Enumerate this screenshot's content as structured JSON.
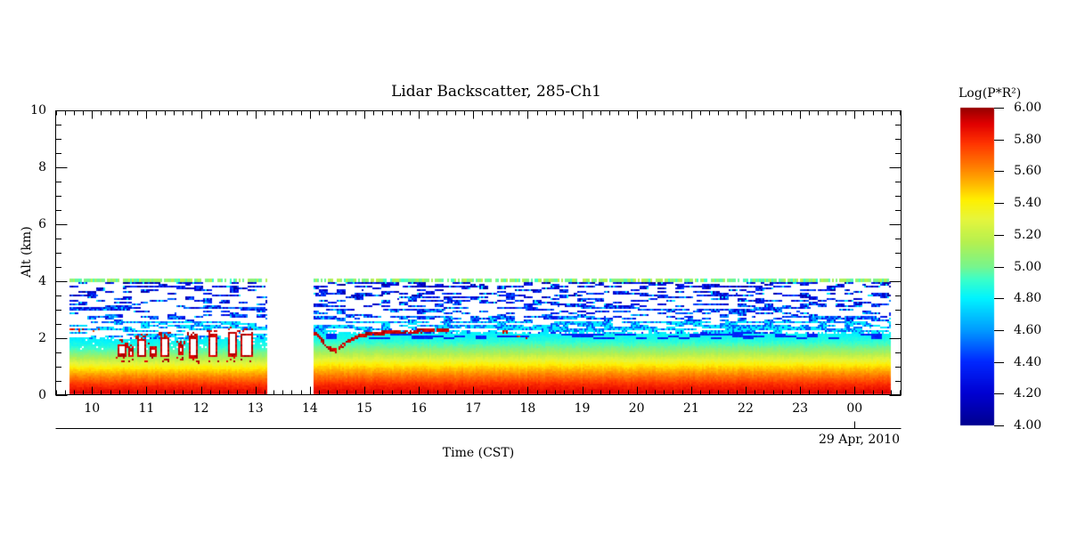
{
  "labels": {
    "title": "Lidar Backscatter, 285-Ch1",
    "xlabel": "Time (CST)",
    "ylabel": "Alt (km)",
    "date": "29 Apr, 2010",
    "colorbar_title": "Log(P*R²)"
  },
  "chart_data": {
    "type": "heatmap",
    "title": "Lidar Backscatter, 285-Ch1",
    "xlabel": "Time (CST)",
    "ylabel": "Alt (km)",
    "date": "29 Apr, 2010",
    "colorbar_title": "Log(P*R²)",
    "xlim_hours": [
      9.33,
      24.87
    ],
    "ylim_km": [
      0,
      10
    ],
    "x_tick_hours": [
      10,
      11,
      12,
      13,
      14,
      15,
      16,
      17,
      18,
      19,
      20,
      21,
      22,
      23,
      24
    ],
    "x_tick_labels": [
      "10",
      "11",
      "12",
      "13",
      "14",
      "15",
      "16",
      "17",
      "18",
      "19",
      "20",
      "21",
      "22",
      "23",
      "00"
    ],
    "x_minor_per_hour": 6,
    "y_tick_km": [
      0,
      2,
      4,
      6,
      8,
      10
    ],
    "y_tick_labels": [
      "0",
      "2",
      "4",
      "6",
      "8",
      "10"
    ],
    "y_minor_step_km": 0.5,
    "colorbar": {
      "min": 4.0,
      "max": 6.0,
      "tick_values": [
        6.0,
        5.8,
        5.6,
        5.4,
        5.2,
        5.0,
        4.8,
        4.6,
        4.4,
        4.2,
        4.0
      ],
      "tick_labels": [
        "6.00",
        "5.80",
        "5.60",
        "5.40",
        "5.20",
        "5.00",
        "4.80",
        "4.60",
        "4.40",
        "4.20",
        "4.00"
      ]
    },
    "colormap_stops": [
      [
        4.0,
        "#000090"
      ],
      [
        4.2,
        "#0000D2"
      ],
      [
        4.4,
        "#0028FF"
      ],
      [
        4.6,
        "#009CFF"
      ],
      [
        4.8,
        "#00F4FF"
      ],
      [
        4.92,
        "#3CFFC8"
      ],
      [
        5.0,
        "#78F58C"
      ],
      [
        5.15,
        "#B4F050"
      ],
      [
        5.3,
        "#E6F53C"
      ],
      [
        5.42,
        "#FFF000"
      ],
      [
        5.6,
        "#FF8C00"
      ],
      [
        5.78,
        "#FF3200"
      ],
      [
        5.9,
        "#E10000"
      ],
      [
        6.0,
        "#960000"
      ]
    ],
    "coverage": {
      "start_hour": 9.58,
      "end_hour": 24.67,
      "gap_hours": [
        13.22,
        14.08
      ],
      "top_km": 4.07
    },
    "boundary_layer_top_km": {
      "morning": 1.98,
      "afternoon": 2.18
    },
    "surface_profile_km_logpr2": [
      [
        0.0,
        5.92
      ],
      [
        0.35,
        5.8
      ],
      [
        0.7,
        5.62
      ],
      [
        1.0,
        5.45
      ],
      [
        1.25,
        5.28
      ],
      [
        1.45,
        5.13
      ],
      [
        1.65,
        5.0
      ],
      [
        1.9,
        4.87
      ],
      [
        2.2,
        4.79
      ],
      [
        2.5,
        4.74
      ]
    ],
    "morning_alt_scale": 1.12,
    "clouds": [
      [
        10.47,
        10.62,
        1.35,
        1.78
      ],
      [
        10.67,
        10.78,
        1.3,
        1.62
      ],
      [
        10.84,
        11.0,
        1.3,
        1.96
      ],
      [
        11.07,
        11.18,
        1.35,
        1.7
      ],
      [
        11.26,
        11.42,
        1.3,
        2.02
      ],
      [
        11.58,
        11.68,
        1.4,
        1.76
      ],
      [
        11.79,
        11.94,
        1.28,
        2.06
      ],
      [
        12.14,
        12.3,
        1.3,
        2.12
      ],
      [
        12.5,
        12.66,
        1.35,
        2.22
      ],
      [
        12.74,
        12.96,
        1.3,
        2.16
      ]
    ],
    "aerosol_layer_track": [
      [
        14.1,
        2.18
      ],
      [
        14.22,
        1.92
      ],
      [
        14.35,
        1.62
      ],
      [
        14.48,
        1.55
      ],
      [
        14.6,
        1.72
      ],
      [
        14.75,
        1.92
      ],
      [
        14.92,
        2.08
      ],
      [
        15.15,
        2.15
      ],
      [
        15.5,
        2.2
      ],
      [
        15.9,
        2.22
      ],
      [
        16.2,
        2.26
      ],
      [
        16.55,
        2.28
      ]
    ],
    "red_specks": [
      [
        9.65,
        2.3
      ],
      [
        9.8,
        2.28
      ],
      [
        10.02,
        2.25
      ],
      [
        10.15,
        2.3
      ],
      [
        16.9,
        2.3
      ],
      [
        17.6,
        2.2
      ],
      [
        17.85,
        2.05
      ],
      [
        17.95,
        2.0
      ]
    ],
    "top_edge_value": 5.0
  }
}
